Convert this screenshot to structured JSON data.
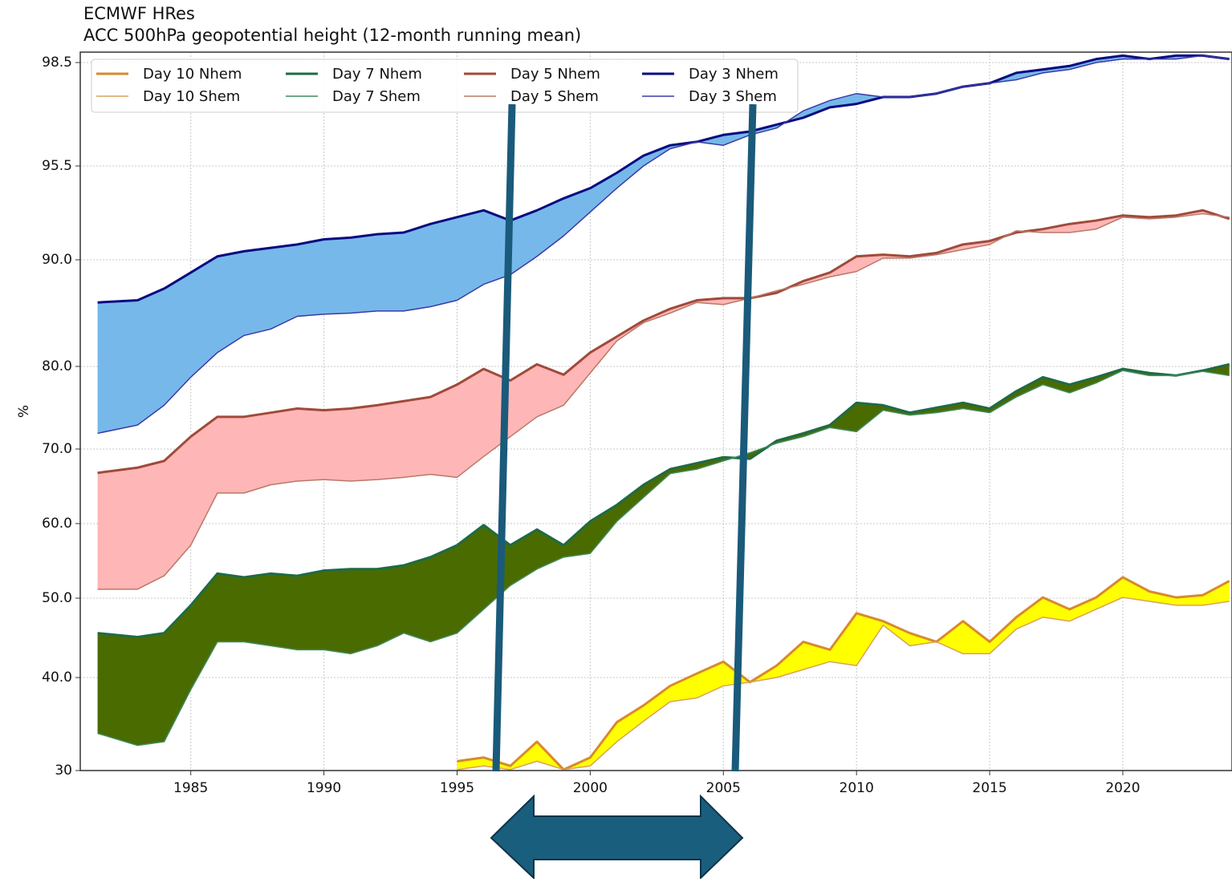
{
  "chart_data": {
    "type": "line",
    "title": "ECMWF HRes",
    "subtitle": "ACC 500hPa geopotential height (12-month running mean)",
    "y_label": "%",
    "x": [
      1981.5,
      1983,
      1984,
      1985,
      1986,
      1987,
      1988,
      1989,
      1990,
      1991,
      1992,
      1993,
      1994,
      1995,
      1996,
      1997,
      1998,
      1999,
      2000,
      2001,
      2002,
      2003,
      2004,
      2005,
      2006,
      2007,
      2008,
      2009,
      2010,
      2011,
      2012,
      2013,
      2014,
      2015,
      2016,
      2017,
      2018,
      2019,
      2020,
      2021,
      2022,
      2023,
      2024
    ],
    "series": [
      {
        "name": "Day 10 Nhem",
        "color": "#d88a2c",
        "linewidth": 3,
        "values": [
          null,
          null,
          null,
          null,
          null,
          null,
          null,
          null,
          null,
          null,
          null,
          null,
          null,
          31.0,
          31.4,
          30.5,
          33.1,
          30.1,
          31.4,
          35.2,
          37.0,
          39.1,
          40.5,
          42.0,
          39.5,
          41.5,
          44.5,
          43.5,
          48.1,
          47.1,
          45.6,
          44.5,
          47.1,
          44.5,
          47.6,
          50.1,
          48.6,
          50.1,
          52.8,
          50.9,
          50.1,
          50.4,
          52.3
        ]
      },
      {
        "name": "Day 10 Shem",
        "color": "#d9a062",
        "linewidth": 1.5,
        "values": [
          null,
          null,
          null,
          null,
          null,
          null,
          null,
          null,
          null,
          null,
          null,
          null,
          null,
          30.1,
          30.5,
          30.1,
          31.0,
          30.1,
          30.5,
          33.1,
          35.3,
          37.4,
          37.8,
          39.1,
          39.5,
          40.0,
          41.0,
          42.0,
          41.5,
          46.6,
          44.0,
          44.5,
          43.0,
          43.0,
          46.1,
          47.6,
          47.1,
          48.6,
          50.1,
          49.6,
          49.1,
          49.1,
          49.6
        ]
      },
      {
        "name": "Day 7 Nhem",
        "color": "#1e6b45",
        "linewidth": 3,
        "values": [
          45.6,
          45.1,
          45.6,
          49.1,
          53.3,
          52.8,
          53.3,
          53.0,
          53.7,
          53.9,
          53.9,
          54.4,
          55.5,
          57.1,
          59.8,
          57.1,
          59.2,
          57.1,
          60.3,
          62.5,
          65.2,
          67.3,
          68.1,
          68.9,
          68.7,
          71.0,
          71.9,
          72.9,
          75.6,
          75.3,
          74.4,
          75.0,
          75.6,
          74.9,
          77.0,
          78.7,
          77.8,
          78.7,
          79.7,
          79.2,
          78.9,
          79.5,
          80.2
        ]
      },
      {
        "name": "Day 7 Shem",
        "color": "#3f8a60",
        "linewidth": 1.5,
        "values": [
          34.0,
          32.7,
          33.1,
          38.7,
          44.5,
          44.5,
          44.0,
          43.5,
          43.5,
          43.0,
          44.0,
          45.6,
          44.5,
          45.6,
          48.6,
          51.7,
          53.9,
          55.5,
          56.0,
          60.3,
          63.5,
          66.7,
          67.3,
          68.4,
          69.5,
          70.7,
          71.5,
          72.6,
          72.1,
          74.7,
          74.1,
          74.4,
          74.9,
          74.4,
          76.3,
          77.8,
          76.8,
          78.0,
          79.5,
          78.9,
          78.9,
          79.4,
          78.9
        ]
      },
      {
        "name": "Day 5 Nhem",
        "color": "#a04a3a",
        "linewidth": 3,
        "values": [
          66.8,
          67.5,
          68.4,
          71.5,
          73.9,
          73.9,
          74.4,
          74.9,
          74.7,
          74.9,
          75.3,
          75.8,
          76.3,
          77.8,
          79.7,
          78.3,
          80.2,
          79.0,
          81.3,
          82.8,
          84.3,
          85.4,
          86.2,
          86.4,
          86.4,
          86.9,
          88.0,
          88.8,
          90.2,
          90.3,
          90.2,
          90.4,
          90.9,
          91.1,
          91.6,
          91.8,
          92.1,
          92.3,
          92.6,
          92.5,
          92.6,
          92.9,
          92.4
        ]
      },
      {
        "name": "Day 5 Shem",
        "color": "#b8786a",
        "linewidth": 1.5,
        "values": [
          51.2,
          51.2,
          53.0,
          57.1,
          64.1,
          64.1,
          65.2,
          65.7,
          65.9,
          65.7,
          65.9,
          66.2,
          66.6,
          66.2,
          69.0,
          71.5,
          73.9,
          75.3,
          79.2,
          82.4,
          84.1,
          85.0,
          86.0,
          85.8,
          86.4,
          87.1,
          87.7,
          88.4,
          88.9,
          90.1,
          90.1,
          90.3,
          90.6,
          90.9,
          91.7,
          91.6,
          91.6,
          91.8,
          92.5,
          92.4,
          92.5,
          92.7,
          92.5
        ]
      },
      {
        "name": "Day 3 Nhem",
        "color": "#0a0a80",
        "linewidth": 3,
        "values": [
          86.0,
          86.2,
          87.3,
          88.8,
          90.2,
          90.5,
          90.7,
          90.9,
          91.2,
          91.3,
          91.5,
          91.6,
          92.1,
          92.5,
          92.9,
          92.3,
          92.9,
          93.6,
          94.2,
          95.1,
          95.8,
          96.1,
          96.2,
          96.4,
          96.5,
          96.7,
          96.9,
          97.2,
          97.3,
          97.5,
          97.5,
          97.6,
          97.8,
          97.9,
          98.2,
          98.3,
          98.4,
          98.6,
          98.7,
          98.6,
          98.7,
          98.7,
          98.6
        ]
      },
      {
        "name": "Day 3 Shem",
        "color": "#3a3aa8",
        "linewidth": 1.5,
        "values": [
          71.9,
          72.9,
          75.3,
          78.7,
          81.3,
          82.9,
          83.5,
          84.7,
          84.9,
          85.0,
          85.2,
          85.2,
          85.6,
          86.2,
          87.7,
          88.6,
          90.2,
          91.4,
          92.8,
          94.2,
          95.5,
          96.0,
          96.2,
          96.1,
          96.4,
          96.6,
          97.1,
          97.4,
          97.6,
          97.5,
          97.5,
          97.6,
          97.8,
          97.9,
          98.0,
          98.2,
          98.3,
          98.5,
          98.6,
          98.6,
          98.6,
          98.7,
          98.6
        ]
      }
    ],
    "bands": [
      {
        "series": [
          0,
          1
        ],
        "color": "#ffff00"
      },
      {
        "series": [
          2,
          3
        ],
        "color": "#4a6b00"
      },
      {
        "series": [
          4,
          5
        ],
        "color": "#ffb6b6"
      },
      {
        "series": [
          6,
          7
        ],
        "color": "#76b8ea"
      }
    ],
    "xlim": [
      1980.85,
      2024.1
    ],
    "xticks": [
      1985,
      1990,
      1995,
      2000,
      2005,
      2010,
      2015,
      2020
    ],
    "ylim": [
      30,
      98.8
    ],
    "yticks": [
      30,
      {
        "value": 40,
        "label": "40.0"
      },
      {
        "value": 50,
        "label": "50.0"
      },
      {
        "value": 60,
        "label": "60.0"
      },
      {
        "value": 70,
        "label": "70.0"
      },
      {
        "value": 80,
        "label": "80.0"
      },
      {
        "value": 90,
        "label": "90.0"
      },
      95.5,
      98.5
    ],
    "grid": true,
    "legend": "upper left"
  }
}
